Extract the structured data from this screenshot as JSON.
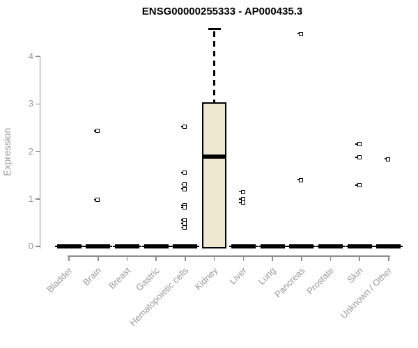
{
  "chart_data": {
    "type": "boxplot",
    "title": "ENSG00000255333 - AP000435.3",
    "ylabel": "Expression",
    "xlabel": "",
    "yticks": [
      0,
      1,
      2,
      3,
      4
    ],
    "ylim": [
      0,
      4.6
    ],
    "grid": false,
    "legend": false,
    "box_fill": "#EDE8CF",
    "box_border": "#000000",
    "axis_color": "#8c8c8c",
    "tick_text_color": "#999999",
    "categories": [
      "Bladder",
      "Brain",
      "Breast",
      "Gastric",
      "Hematopoietic cells",
      "Kidney",
      "Liver",
      "Lung",
      "Pancreas",
      "Prostate",
      "Skin",
      "Unknown / Other"
    ],
    "boxes": [
      {
        "category": "Bladder",
        "min": 0,
        "q1": 0,
        "median": 0,
        "q3": 0,
        "max": 0,
        "outliers": []
      },
      {
        "category": "Brain",
        "min": 0,
        "q1": 0,
        "median": 0,
        "q3": 0,
        "max": 0,
        "outliers": [
          2.42,
          0.97
        ]
      },
      {
        "category": "Breast",
        "min": 0,
        "q1": 0,
        "median": 0,
        "q3": 0,
        "max": 0,
        "outliers": []
      },
      {
        "category": "Gastric",
        "min": 0,
        "q1": 0,
        "median": 0,
        "q3": 0,
        "max": 0,
        "outliers": []
      },
      {
        "category": "Hematopoietic cells",
        "min": 0,
        "q1": 0,
        "median": 0,
        "q3": 0,
        "max": 0,
        "outliers": [
          2.51,
          1.54,
          1.3,
          1.2,
          0.85,
          0.81,
          0.55,
          0.47,
          0.39
        ]
      },
      {
        "category": "Kidney",
        "min": 0,
        "q1": 0,
        "median": 1.89,
        "q3": 3.03,
        "max": 4.58,
        "outliers": []
      },
      {
        "category": "Liver",
        "min": 0,
        "q1": 0,
        "median": 0,
        "q3": 0,
        "max": 0,
        "outliers": [
          1.14,
          0.99,
          0.91
        ]
      },
      {
        "category": "Lung",
        "min": 0,
        "q1": 0,
        "median": 0,
        "q3": 0,
        "max": 0,
        "outliers": []
      },
      {
        "category": "Pancreas",
        "min": 0,
        "q1": 0,
        "median": 0,
        "q3": 0,
        "max": 0,
        "outliers": [
          4.47,
          1.39
        ]
      },
      {
        "category": "Prostate",
        "min": 0,
        "q1": 0,
        "median": 0,
        "q3": 0,
        "max": 0,
        "outliers": []
      },
      {
        "category": "Skin",
        "min": 0,
        "q1": 0,
        "median": 0,
        "q3": 0,
        "max": 0,
        "outliers": [
          2.14,
          1.87,
          1.28
        ]
      },
      {
        "category": "Unknown / Other",
        "min": 0,
        "q1": 0,
        "median": 0,
        "q3": 0,
        "max": 0,
        "outliers": [
          1.83
        ]
      }
    ]
  }
}
